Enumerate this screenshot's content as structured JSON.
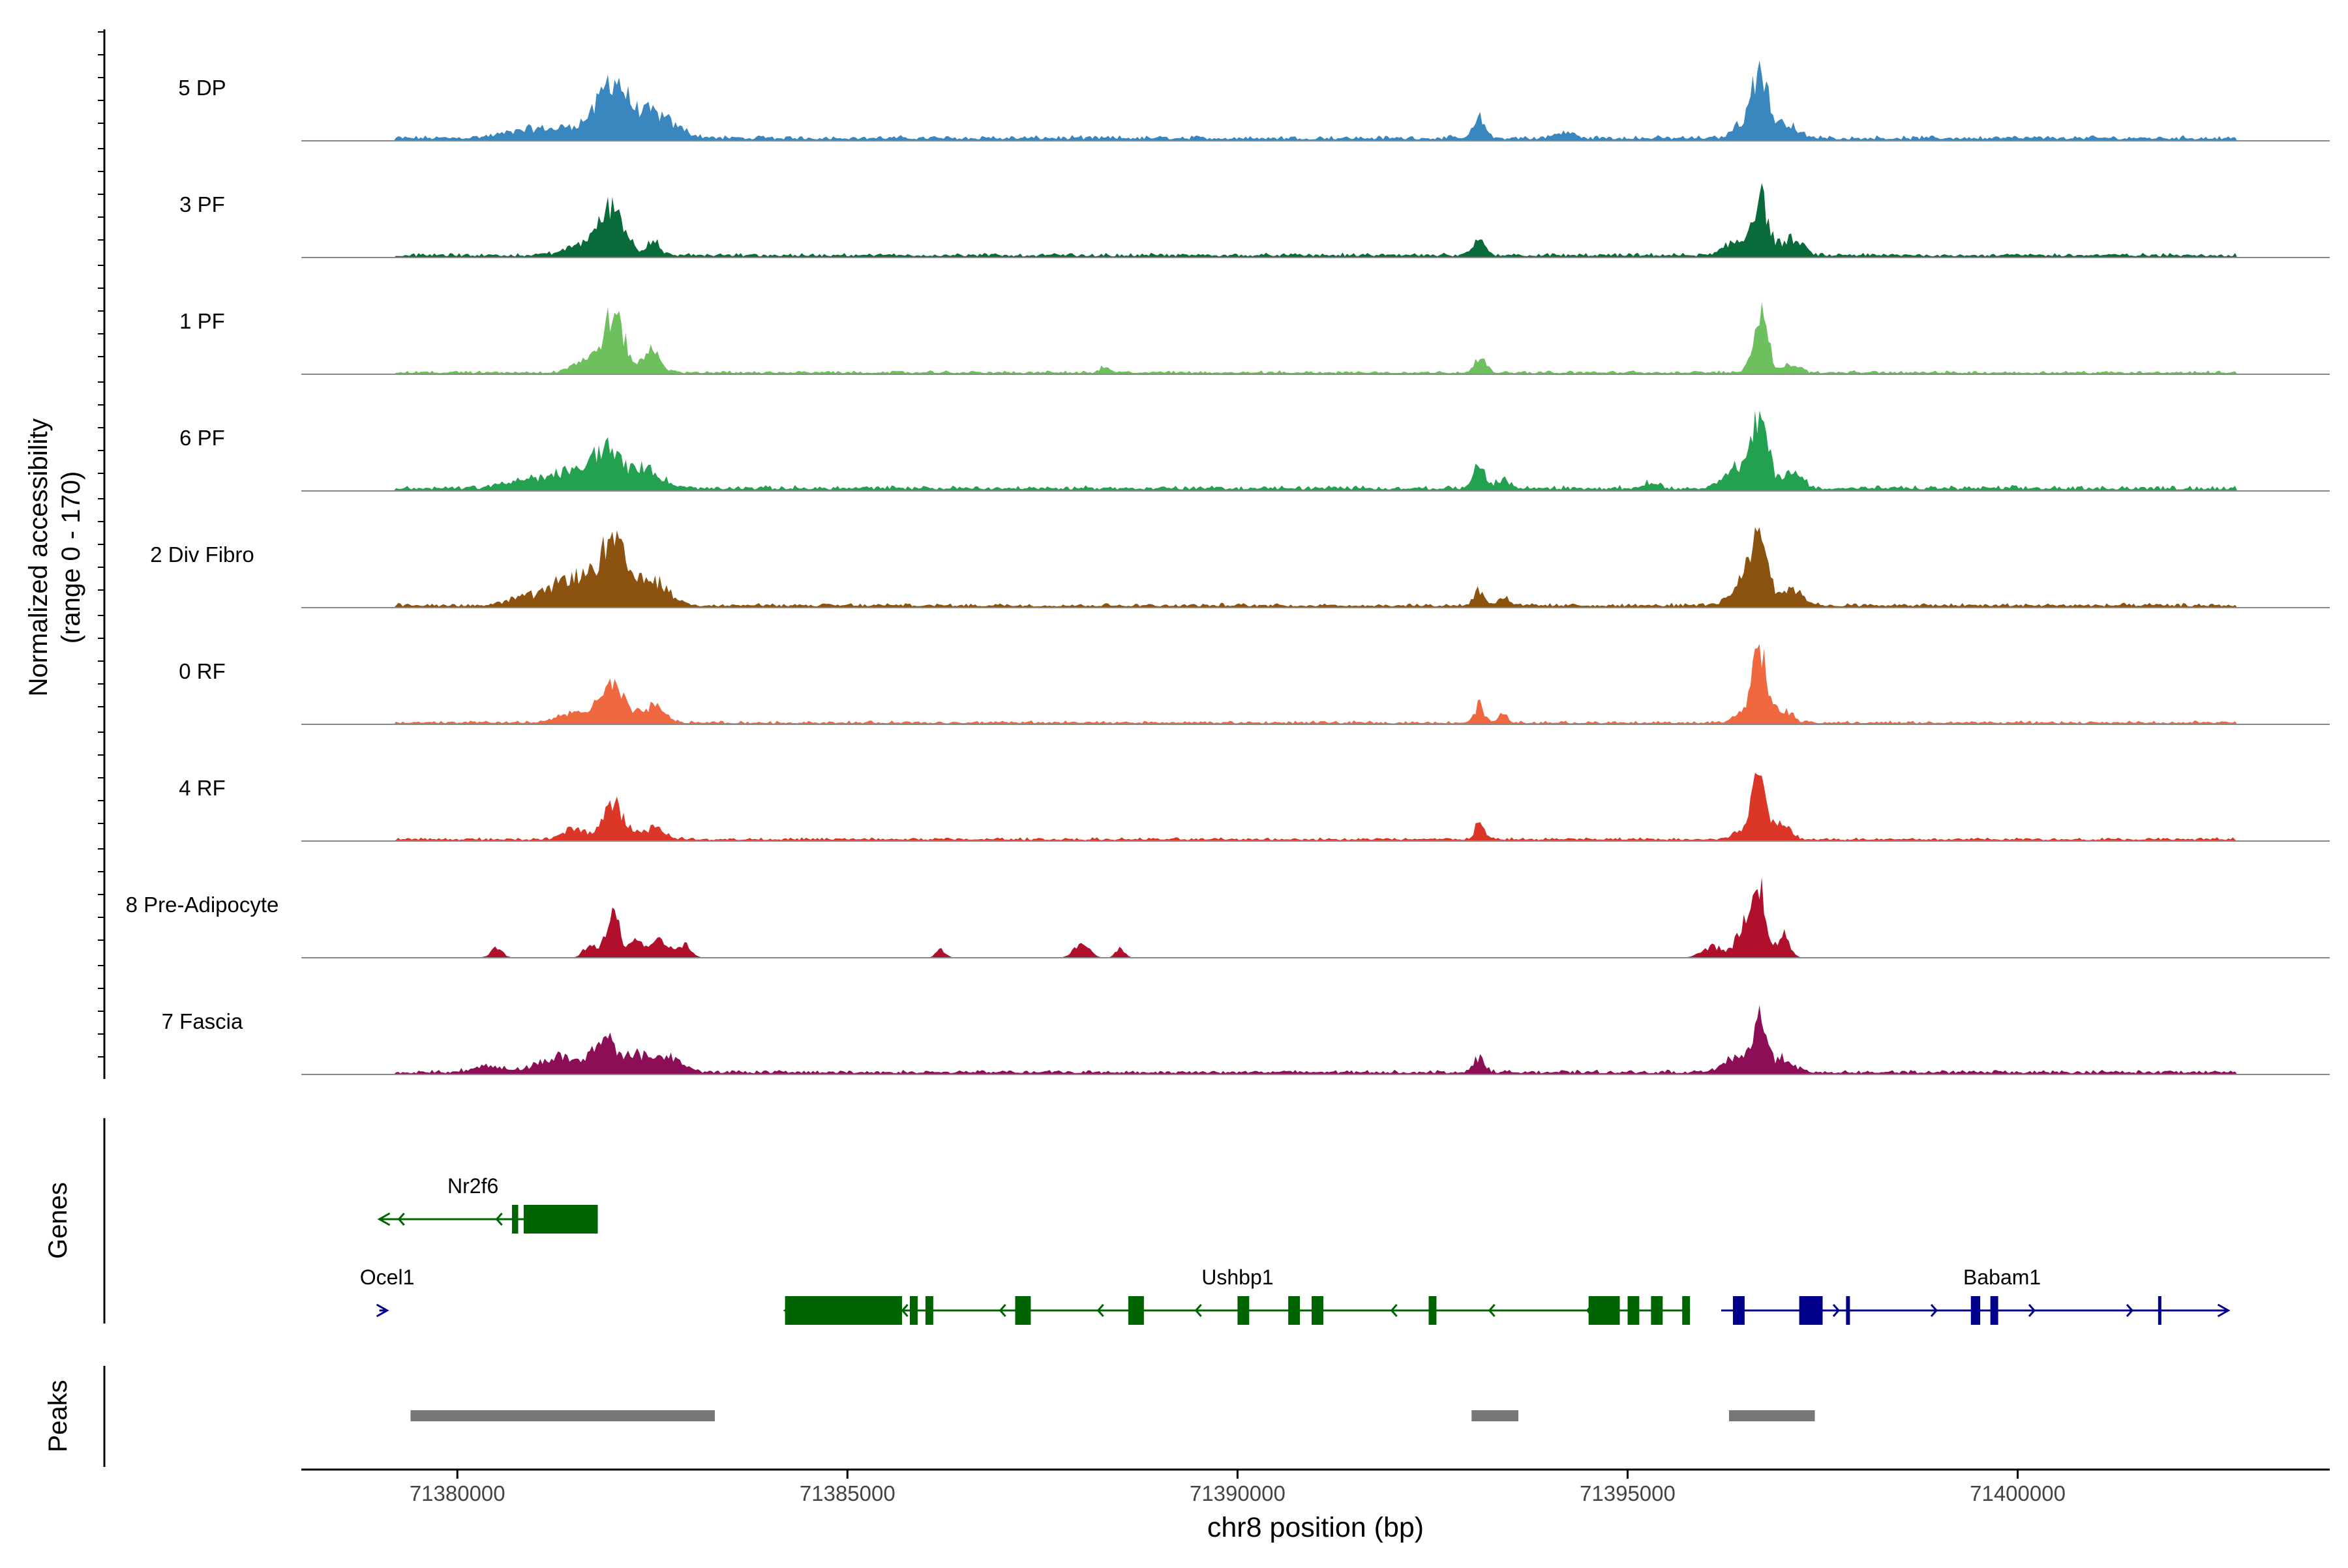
{
  "chart_data": {
    "type": "area",
    "title": "",
    "ylabel_line1": "Normalized accessibility",
    "ylabel_line2": "(range 0 - 170)",
    "xlabel": "chr8 position (bp)",
    "xlim": [
      71378000,
      71404000
    ],
    "ylim": [
      0,
      170
    ],
    "x_ticks": [
      71380000,
      71385000,
      71390000,
      71395000,
      71400000
    ],
    "x_tick_labels": [
      "71380000",
      "71385000",
      "71390000",
      "71395000",
      "71400000"
    ],
    "track_labels": {
      "genes": "Genes",
      "peaks": "Peaks"
    },
    "series": [
      {
        "name": "5 DP",
        "color": "#3A87C0",
        "peaks": [
          [
            71381000,
            8,
            350
          ],
          [
            71381700,
            12,
            250
          ],
          [
            71382000,
            45,
            160
          ],
          [
            71382400,
            18,
            200
          ],
          [
            71382700,
            10,
            220
          ],
          [
            71393100,
            18,
            70
          ],
          [
            71394200,
            5,
            120
          ],
          [
            71396500,
            15,
            130
          ],
          [
            71396700,
            60,
            90
          ],
          [
            71397000,
            14,
            150
          ]
        ],
        "base": 3
      },
      {
        "name": "3 PF",
        "color": "#0A6B3A",
        "peaks": [
          [
            71381700,
            12,
            250
          ],
          [
            71382000,
            38,
            150
          ],
          [
            71382500,
            14,
            80
          ],
          [
            71393100,
            14,
            70
          ],
          [
            71396400,
            12,
            150
          ],
          [
            71396700,
            50,
            100
          ],
          [
            71397100,
            14,
            140
          ]
        ],
        "base": 2.5
      },
      {
        "name": "1 PF",
        "color": "#6EBF5E",
        "peaks": [
          [
            71381600,
            10,
            150
          ],
          [
            71382000,
            50,
            140
          ],
          [
            71382500,
            22,
            100
          ],
          [
            71388300,
            6,
            50
          ],
          [
            71393100,
            14,
            70
          ],
          [
            71396700,
            58,
            90
          ],
          [
            71397100,
            8,
            100
          ]
        ],
        "base": 2
      },
      {
        "name": "6 PF",
        "color": "#23A050",
        "peaks": [
          [
            71380800,
            6,
            250
          ],
          [
            71381400,
            14,
            250
          ],
          [
            71381900,
            35,
            170
          ],
          [
            71382400,
            18,
            200
          ],
          [
            71393100,
            20,
            70
          ],
          [
            71393400,
            8,
            80
          ],
          [
            71395300,
            6,
            90
          ],
          [
            71396400,
            18,
            170
          ],
          [
            71396700,
            60,
            100
          ],
          [
            71397100,
            15,
            130
          ]
        ],
        "base": 3
      },
      {
        "name": "2 Div Fibro",
        "color": "#8B5210",
        "peaks": [
          [
            71380800,
            6,
            200
          ],
          [
            71381500,
            25,
            300
          ],
          [
            71382000,
            48,
            170
          ],
          [
            71382500,
            22,
            200
          ],
          [
            71393100,
            14,
            70
          ],
          [
            71393400,
            8,
            60
          ],
          [
            71396500,
            22,
            160
          ],
          [
            71396700,
            65,
            100
          ],
          [
            71397100,
            15,
            140
          ]
        ],
        "base": 2.5
      },
      {
        "name": "0 RF",
        "color": "#F06840",
        "peaks": [
          [
            71381600,
            10,
            250
          ],
          [
            71382000,
            30,
            140
          ],
          [
            71382500,
            14,
            150
          ],
          [
            71393100,
            16,
            60
          ],
          [
            71393400,
            7,
            60
          ],
          [
            71396500,
            12,
            120
          ],
          [
            71396700,
            60,
            90
          ],
          [
            71397000,
            12,
            100
          ]
        ],
        "base": 2
      },
      {
        "name": "4 RF",
        "color": "#DC3628",
        "peaks": [
          [
            71381500,
            10,
            130
          ],
          [
            71382000,
            30,
            140
          ],
          [
            71382500,
            10,
            150
          ],
          [
            71393100,
            14,
            60
          ],
          [
            71396500,
            10,
            120
          ],
          [
            71396700,
            70,
            80
          ],
          [
            71397000,
            14,
            100
          ]
        ],
        "base": 2
      },
      {
        "name": "8 Pre-Adipocyte",
        "color": "#B0102C",
        "peaks": [
          [
            71380500,
            8,
            80
          ],
          [
            71381700,
            12,
            80
          ],
          [
            71382000,
            38,
            90
          ],
          [
            71382300,
            18,
            80
          ],
          [
            71382600,
            16,
            100
          ],
          [
            71382900,
            12,
            90
          ],
          [
            71386200,
            8,
            60
          ],
          [
            71388000,
            12,
            100
          ],
          [
            71388500,
            8,
            60
          ],
          [
            71396100,
            10,
            140
          ],
          [
            71396500,
            30,
            100
          ],
          [
            71396700,
            62,
            80
          ],
          [
            71397000,
            20,
            80
          ]
        ],
        "base": 0
      },
      {
        "name": "7 Fascia",
        "color": "#8C0E56",
        "peaks": [
          [
            71380400,
            6,
            200
          ],
          [
            71381300,
            14,
            250
          ],
          [
            71381900,
            30,
            150
          ],
          [
            71382400,
            16,
            200
          ],
          [
            71382800,
            10,
            150
          ],
          [
            71393100,
            12,
            80
          ],
          [
            71396400,
            14,
            160
          ],
          [
            71396700,
            45,
            90
          ],
          [
            71397000,
            12,
            120
          ]
        ],
        "base": 2.5
      }
    ],
    "genes": [
      {
        "name": "Nr2f6",
        "strand": "-",
        "color": "#006400",
        "row": 0,
        "label_x": 71380200,
        "start": 71379000,
        "end": 71381800,
        "exons": [
          [
            71380700,
            71380780
          ],
          [
            71380850,
            71381800
          ]
        ]
      },
      {
        "name": "Ocel1",
        "strand": "+",
        "color": "#00008B",
        "row": 1,
        "label_x": 71379100,
        "start": 71379000,
        "end": 71379100,
        "exons": []
      },
      {
        "name": "Ushbp1",
        "strand": "-",
        "color": "#006400",
        "row": 1,
        "label_x": 71390000,
        "start": 71384200,
        "end": 71395800,
        "exons": [
          [
            71384200,
            71385700
          ],
          [
            71385800,
            71385900
          ],
          [
            71386000,
            71386100
          ],
          [
            71387150,
            71387350
          ],
          [
            71388600,
            71388800
          ],
          [
            71390000,
            71390150
          ],
          [
            71390650,
            71390800
          ],
          [
            71390950,
            71391100
          ],
          [
            71392450,
            71392550
          ],
          [
            71394500,
            71394900
          ],
          [
            71395000,
            71395150
          ],
          [
            71395300,
            71395450
          ],
          [
            71395700,
            71395800
          ]
        ]
      },
      {
        "name": "Babam1",
        "strand": "+",
        "color": "#00008B",
        "row": 1,
        "label_x": 71399800,
        "start": 71396200,
        "end": 71402700,
        "exons": [
          [
            71396350,
            71396500
          ],
          [
            71397200,
            71397500
          ],
          [
            71397800,
            71397850
          ],
          [
            71399400,
            71399520
          ],
          [
            71399650,
            71399750
          ],
          [
            71401800,
            71401830
          ]
        ]
      }
    ],
    "peaks": [
      [
        71379400,
        71383300
      ],
      [
        71393000,
        71393600
      ],
      [
        71396300,
        71397400
      ]
    ]
  }
}
